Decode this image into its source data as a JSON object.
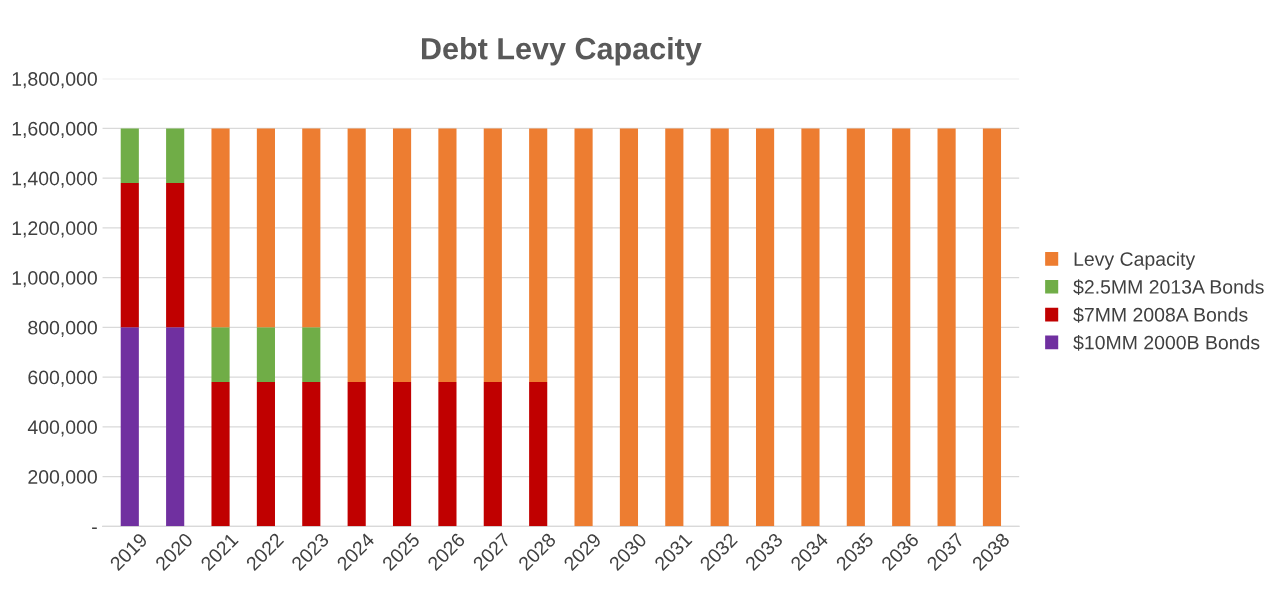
{
  "chart_data": {
    "type": "bar",
    "title": "Debt Levy Capacity",
    "stacked": true,
    "categories": [
      "2019",
      "2020",
      "2021",
      "2022",
      "2023",
      "2024",
      "2025",
      "2026",
      "2027",
      "2028",
      "2029",
      "2030",
      "2031",
      "2032",
      "2033",
      "2034",
      "2035",
      "2036",
      "2037",
      "2038"
    ],
    "series": [
      {
        "name": "$10MM 2000B Bonds",
        "color": "#7030a0",
        "values": [
          800000,
          800000,
          null,
          null,
          null,
          null,
          null,
          null,
          null,
          null,
          null,
          null,
          null,
          null,
          null,
          null,
          null,
          null,
          null,
          null
        ]
      },
      {
        "name": "$7MM 2008A Bonds",
        "color": "#c00000",
        "values": [
          580000,
          580000,
          580000,
          580000,
          580000,
          580000,
          580000,
          580000,
          580000,
          580000,
          null,
          null,
          null,
          null,
          null,
          null,
          null,
          null,
          null,
          null
        ]
      },
      {
        "name": "$2.5MM 2013A Bonds",
        "color": "#70ad47",
        "values": [
          220000,
          220000,
          220000,
          220000,
          220000,
          null,
          null,
          null,
          null,
          null,
          null,
          null,
          null,
          null,
          null,
          null,
          null,
          null,
          null,
          null
        ]
      },
      {
        "name": "Levy Capacity",
        "color": "#ed7d31",
        "values": [
          null,
          null,
          800000,
          800000,
          800000,
          1020000,
          1020000,
          1020000,
          1020000,
          1020000,
          1600000,
          1600000,
          1600000,
          1600000,
          1600000,
          1600000,
          1600000,
          1600000,
          1600000,
          1600000
        ]
      }
    ],
    "ylim": [
      0,
      1800000
    ],
    "yticks": [
      {
        "value": 0,
        "label": "-"
      },
      {
        "value": 200000,
        "label": "200,000"
      },
      {
        "value": 400000,
        "label": "400,000"
      },
      {
        "value": 600000,
        "label": "600,000"
      },
      {
        "value": 800000,
        "label": "800,000"
      },
      {
        "value": 1000000,
        "label": "1,000,000"
      },
      {
        "value": 1200000,
        "label": "1,200,000"
      },
      {
        "value": 1400000,
        "label": "1,400,000"
      },
      {
        "value": 1600000,
        "label": "1,600,000"
      },
      {
        "value": 1800000,
        "label": "1,800,000"
      }
    ],
    "grid": "y",
    "legend": "right"
  }
}
